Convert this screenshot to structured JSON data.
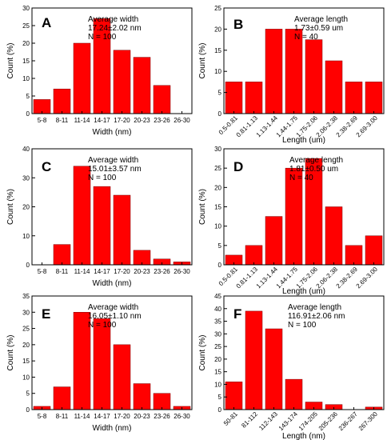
{
  "chart_data": [
    {
      "panel": "A",
      "type": "bar",
      "categories": [
        "5-8",
        "8-11",
        "11-14",
        "14-17",
        "17-20",
        "20-23",
        "23-26",
        "26-30"
      ],
      "values": [
        4,
        7,
        20,
        27,
        18,
        16,
        8,
        0
      ],
      "xlabel": "Width (nm)",
      "ylabel": "Count (%)",
      "ylim": [
        0,
        30
      ],
      "yticks": [
        0,
        5,
        10,
        15,
        20,
        25,
        30
      ],
      "annotation": [
        "Average width",
        "17.24±2.02 nm",
        "N = 100"
      ],
      "rotate_labels": false,
      "bar_color": "#ff0000"
    },
    {
      "panel": "B",
      "type": "bar",
      "categories": [
        "0.5-0.81",
        "0.81-1.13",
        "1.13-1.44",
        "1.44-1.75",
        "1.75-2.06",
        "2.06-2.38",
        "2.38-2.69",
        "2.69-3.00"
      ],
      "values": [
        7.5,
        7.5,
        20,
        20,
        17.5,
        12.5,
        7.5,
        7.5
      ],
      "xlabel": "Length (um)",
      "ylabel": "Count (%)",
      "ylim": [
        0,
        25
      ],
      "yticks": [
        0,
        5,
        10,
        15,
        20,
        25
      ],
      "annotation": [
        "Average length",
        "1.73±0.59 um",
        "N = 40"
      ],
      "rotate_labels": true,
      "bar_color": "#ff0000"
    },
    {
      "panel": "C",
      "type": "bar",
      "categories": [
        "5-8",
        "8-11",
        "11-14",
        "14-17",
        "17-20",
        "20-23",
        "23-26",
        "26-30"
      ],
      "values": [
        0,
        7,
        34,
        27,
        24,
        5,
        2,
        1
      ],
      "xlabel": "Width (nm)",
      "ylabel": "Count (%)",
      "ylim": [
        0,
        40
      ],
      "yticks": [
        0,
        10,
        20,
        30,
        40
      ],
      "annotation": [
        "Average width",
        "15.01±3.57 nm",
        "N = 100"
      ],
      "rotate_labels": false,
      "bar_color": "#ff0000"
    },
    {
      "panel": "D",
      "type": "bar",
      "categories": [
        "0.5-0.81",
        "0.81-1.13",
        "1.13-1.44",
        "1.44-1.75",
        "1.75-2.06",
        "2.06-2.38",
        "2.38-2.69",
        "2.69-3.00"
      ],
      "values": [
        2.5,
        5,
        12.5,
        25,
        27.5,
        15,
        5,
        7.5
      ],
      "xlabel": "Length (um)",
      "ylabel": "Count (%)",
      "ylim": [
        0,
        30
      ],
      "yticks": [
        0,
        5,
        10,
        15,
        20,
        25,
        30
      ],
      "annotation": [
        "Average length",
        "1.81±0.50 um",
        "N = 40"
      ],
      "rotate_labels": true,
      "bar_color": "#ff0000"
    },
    {
      "panel": "E",
      "type": "bar",
      "categories": [
        "5-8",
        "8-11",
        "11-14",
        "14-17",
        "17-20",
        "20-23",
        "23-26",
        "26-30"
      ],
      "values": [
        1,
        7,
        30,
        28,
        20,
        8,
        5,
        1
      ],
      "xlabel": "Width (nm)",
      "ylabel": "Count (%)",
      "ylim": [
        0,
        35
      ],
      "yticks": [
        0,
        5,
        10,
        15,
        20,
        25,
        30,
        35
      ],
      "annotation": [
        "Average width",
        "16.05±1.10 nm",
        "N = 100"
      ],
      "rotate_labels": false,
      "bar_color": "#ff0000"
    },
    {
      "panel": "F",
      "type": "bar",
      "categories": [
        "50-81",
        "81-112",
        "112-143",
        "143-174",
        "174-205",
        "205-236",
        "236-267",
        "267-300"
      ],
      "values": [
        11,
        39,
        32,
        12,
        3,
        2,
        0,
        1
      ],
      "xlabel": "Length (nm)",
      "ylabel": "Count (%)",
      "ylim": [
        0,
        45
      ],
      "yticks": [
        0,
        5,
        10,
        15,
        20,
        25,
        30,
        35,
        40,
        45
      ],
      "annotation": [
        "Average length",
        "116.91±2.06 nm",
        "N = 100"
      ],
      "rotate_labels": true,
      "bar_color": "#ff0000"
    }
  ]
}
